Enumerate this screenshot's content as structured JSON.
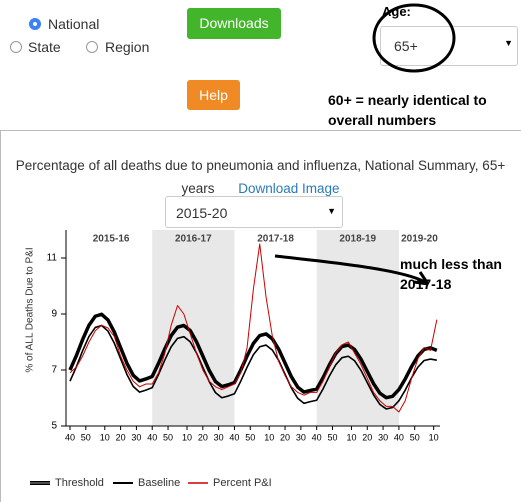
{
  "radios": [
    {
      "label": "National",
      "checked": true
    },
    {
      "label": "State",
      "checked": false
    },
    {
      "label": "Region",
      "checked": false
    }
  ],
  "buttons": {
    "downloads": "Downloads",
    "help": "Help"
  },
  "age": {
    "label": "Age:",
    "value": "65+"
  },
  "annotations": {
    "age_note": "60+ = nearly identical to overall numbers",
    "chart_note": "much less than 2017-18"
  },
  "chart_data": {
    "type": "line",
    "title": "Percentage of all deaths due to pneumonia and influenza, National Summary, 65+ years",
    "download_link": "Download Image",
    "season_select": "2015-20",
    "y_label": "% of ALL Deaths Due to P&I",
    "seasons": [
      "2015-16",
      "2016-17",
      "2017-18",
      "2018-19",
      "2019-20"
    ],
    "x": [
      0,
      4,
      8,
      12,
      16,
      20,
      24,
      28,
      32,
      36,
      40,
      44,
      48,
      52,
      56,
      60,
      64,
      68,
      72,
      76,
      80,
      84,
      88,
      92,
      96,
      100,
      104,
      108,
      112,
      116,
      120,
      124,
      128,
      132,
      136,
      140,
      144,
      148,
      152,
      156,
      160,
      164,
      168,
      172,
      176,
      180,
      184,
      188,
      192,
      196,
      200,
      204,
      208,
      212,
      216,
      220,
      224,
      228,
      232
    ],
    "series": [
      {
        "name": "Threshold",
        "color": "#000000",
        "values": [
          7.0,
          7.51,
          8.09,
          8.6,
          8.92,
          8.99,
          8.79,
          8.36,
          7.8,
          7.24,
          6.81,
          6.61,
          6.68,
          6.77,
          7.24,
          7.76,
          8.23,
          8.53,
          8.59,
          8.41,
          8.01,
          7.5,
          6.99,
          6.59,
          6.41,
          6.47,
          6.55,
          7.0,
          7.5,
          7.95,
          8.23,
          8.29,
          8.11,
          7.74,
          7.25,
          6.76,
          6.39,
          6.21,
          6.27,
          6.32,
          6.72,
          7.18,
          7.58,
          7.84,
          7.89,
          7.73,
          7.39,
          6.95,
          6.51,
          6.17,
          6.01,
          6.06,
          6.3,
          6.68,
          7.12,
          7.5,
          7.74,
          7.79,
          7.7
        ]
      },
      {
        "name": "Baseline",
        "color": "#000000",
        "values": [
          6.6,
          7.11,
          7.69,
          8.2,
          8.52,
          8.59,
          8.39,
          7.96,
          7.4,
          6.84,
          6.41,
          6.21,
          6.28,
          6.37,
          6.84,
          7.36,
          7.83,
          8.13,
          8.19,
          8.01,
          7.61,
          7.1,
          6.59,
          6.19,
          6.01,
          6.07,
          6.15,
          6.6,
          7.1,
          7.55,
          7.83,
          7.89,
          7.71,
          7.34,
          6.85,
          6.36,
          5.99,
          5.81,
          5.87,
          5.92,
          6.32,
          6.78,
          7.18,
          7.44,
          7.49,
          7.33,
          6.99,
          6.55,
          6.11,
          5.77,
          5.61,
          5.66,
          5.9,
          6.28,
          6.72,
          7.1,
          7.34,
          7.39,
          7.35
        ]
      },
      {
        "name": "Percent P&I",
        "color": "#cc0000",
        "values": [
          6.9,
          7.1,
          7.5,
          8.0,
          8.4,
          8.6,
          8.5,
          8.2,
          7.5,
          7.0,
          6.6,
          6.4,
          6.5,
          6.5,
          6.9,
          7.6,
          8.6,
          9.3,
          9.0,
          8.3,
          7.6,
          7.0,
          6.6,
          6.4,
          6.3,
          6.4,
          6.5,
          6.9,
          7.8,
          9.9,
          11.5,
          9.6,
          8.2,
          7.3,
          6.8,
          6.4,
          6.2,
          6.1,
          6.2,
          6.2,
          6.6,
          7.1,
          7.6,
          7.9,
          8.0,
          7.6,
          7.2,
          6.7,
          6.2,
          5.9,
          5.7,
          5.7,
          5.5,
          5.9,
          6.7,
          7.4,
          7.8,
          7.7,
          8.8
        ]
      }
    ],
    "xlim": [
      0,
      234
    ],
    "ylim": [
      5,
      12
    ],
    "yticks": [
      5,
      7,
      9,
      11
    ],
    "xticks": [
      {
        "value": 0,
        "label": "40"
      },
      {
        "value": 10,
        "label": "50"
      },
      {
        "value": 22,
        "label": "10"
      },
      {
        "value": 32,
        "label": "20"
      },
      {
        "value": 42,
        "label": "30"
      },
      {
        "value": 52,
        "label": "40"
      },
      {
        "value": 62,
        "label": "50"
      },
      {
        "value": 74,
        "label": "10"
      },
      {
        "value": 84,
        "label": "20"
      },
      {
        "value": 94,
        "label": "30"
      },
      {
        "value": 104,
        "label": "40"
      },
      {
        "value": 114,
        "label": "50"
      },
      {
        "value": 126,
        "label": "10"
      },
      {
        "value": 136,
        "label": "20"
      },
      {
        "value": 146,
        "label": "30"
      },
      {
        "value": 156,
        "label": "40"
      },
      {
        "value": 166,
        "label": "50"
      },
      {
        "value": 178,
        "label": "10"
      },
      {
        "value": 188,
        "label": "20"
      },
      {
        "value": 198,
        "label": "30"
      },
      {
        "value": 208,
        "label": "40"
      },
      {
        "value": 218,
        "label": "50"
      },
      {
        "value": 230,
        "label": "10"
      }
    ]
  }
}
